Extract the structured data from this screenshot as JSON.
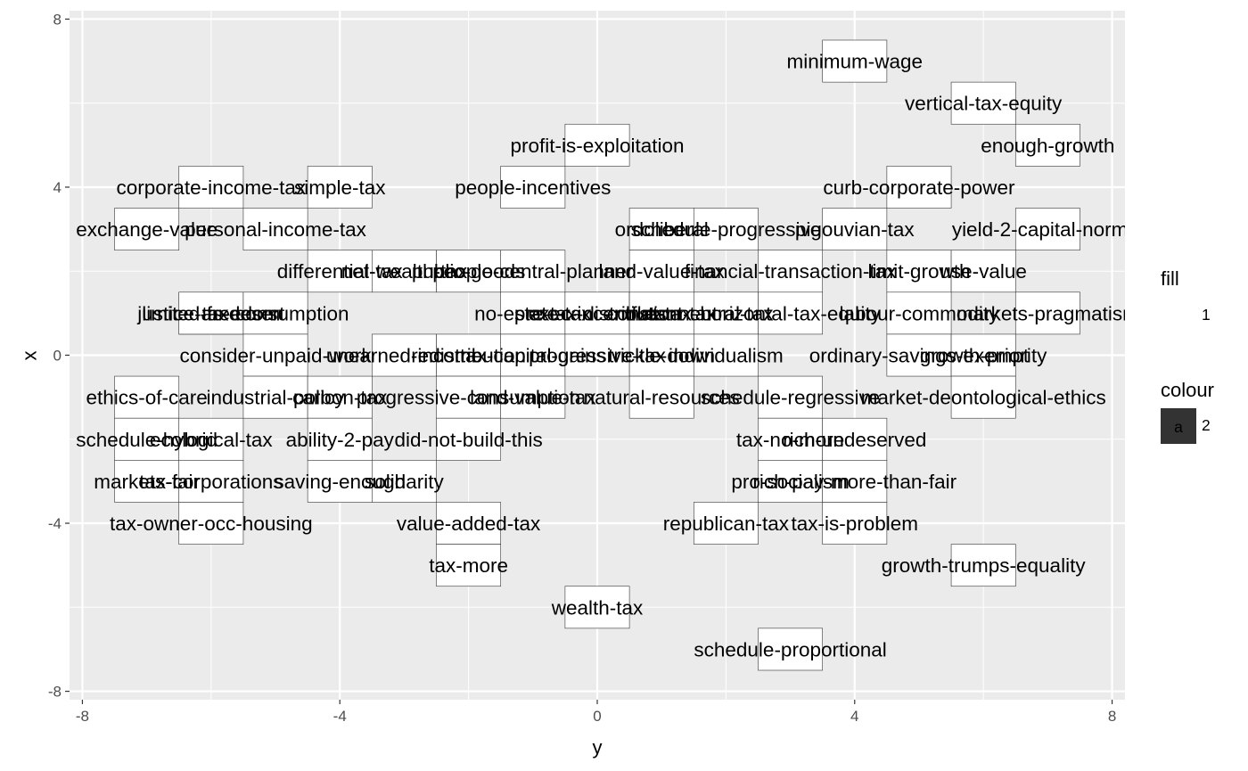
{
  "chart_data": {
    "type": "scatter",
    "xlabel": "y",
    "ylabel": "x",
    "xlim": [
      -8.2,
      8.2
    ],
    "ylim": [
      -8.2,
      8.2
    ],
    "x_ticks": [
      "-8",
      "-4",
      "0",
      "4",
      "8"
    ],
    "y_ticks": [
      "8",
      "4",
      "0",
      "-4",
      "-8"
    ],
    "x_tick_values": [
      -8,
      -4,
      0,
      4,
      8
    ],
    "y_tick_values": [
      8,
      4,
      0,
      -4,
      -8
    ],
    "grid": true,
    "legend": {
      "placement": "right",
      "fill_title": "fill",
      "fill_label": "1",
      "colour_title": "colour",
      "colour_key": "a",
      "colour_label": "2",
      "colour_key_color": "#333333"
    },
    "colors": {
      "panel": "#ebebeb",
      "grid": "#ffffff",
      "tile": "#ffffff",
      "tile_border": "#333333"
    },
    "points": [
      {
        "label": "minimum-wage",
        "x": 4,
        "y": 7
      },
      {
        "label": "vertical-tax-equity",
        "x": 6,
        "y": 6
      },
      {
        "label": "profit-is-exploitation",
        "x": 0,
        "y": 5
      },
      {
        "label": "enough-growth",
        "x": 7,
        "y": 5
      },
      {
        "label": "corporate-income-tax",
        "x": -6,
        "y": 4
      },
      {
        "label": "simple-tax",
        "x": -4,
        "y": 4
      },
      {
        "label": "people-incentives",
        "x": -1,
        "y": 4
      },
      {
        "label": "curb-corporate-power",
        "x": 5,
        "y": 4
      },
      {
        "label": "exchange-value",
        "x": -7,
        "y": 3
      },
      {
        "label": "personal-income-tax",
        "x": -5,
        "y": 3
      },
      {
        "label": "ordoliberal",
        "x": 1,
        "y": 3
      },
      {
        "label": "schedule-progressive",
        "x": 2,
        "y": 3
      },
      {
        "label": "pigouvian-tax",
        "x": 4,
        "y": 3
      },
      {
        "label": "yield-2-capital-normal",
        "x": 7,
        "y": 3
      },
      {
        "label": "differential-tax",
        "x": -4,
        "y": 2
      },
      {
        "label": "net-wealth-tax",
        "x": -3,
        "y": 2
      },
      {
        "label": "public-goods",
        "x": -2,
        "y": 2
      },
      {
        "label": "people-central-planner",
        "x": -1,
        "y": 2
      },
      {
        "label": "land-value-tax",
        "x": 1,
        "y": 2
      },
      {
        "label": "financial-transaction-tax",
        "x": 3,
        "y": 2
      },
      {
        "label": "limit-growth",
        "x": 5,
        "y": 2
      },
      {
        "label": "use-value",
        "x": 6,
        "y": 2
      },
      {
        "label": "justice-as-desert",
        "x": -6,
        "y": 1
      },
      {
        "label": "limited-freedom",
        "x": -6,
        "y": 1
      },
      {
        "label": "tax-consumption",
        "x": -5,
        "y": 1
      },
      {
        "label": "no-estate-tax",
        "x": -1,
        "y": 1
      },
      {
        "label": "exec-incentives",
        "x": 0,
        "y": 1
      },
      {
        "label": "pre-tax-distribution",
        "x": 0,
        "y": 1
      },
      {
        "label": "constant-tax",
        "x": 1,
        "y": 1
      },
      {
        "label": "flat-tax",
        "x": 1,
        "y": 1
      },
      {
        "label": "neutral-tax",
        "x": 2,
        "y": 1
      },
      {
        "label": "horizontal-tax-equity",
        "x": 3,
        "y": 1
      },
      {
        "label": "labour-commodity",
        "x": 5,
        "y": 1
      },
      {
        "label": "markets-pragmatism",
        "x": 7,
        "y": 1
      },
      {
        "label": "consider-unpaid-work",
        "x": -5,
        "y": 0
      },
      {
        "label": "unearned-income",
        "x": -3,
        "y": 0
      },
      {
        "label": "redistribution",
        "x": -2,
        "y": 0
      },
      {
        "label": "tax-capital-gains",
        "x": -1,
        "y": 0
      },
      {
        "label": "progressive-tax",
        "x": 0,
        "y": 0
      },
      {
        "label": "trickle-down",
        "x": 1,
        "y": 0
      },
      {
        "label": "individualism",
        "x": 2,
        "y": 0
      },
      {
        "label": "ordinary-savings-exempt",
        "x": 5,
        "y": 0
      },
      {
        "label": "growth-priority",
        "x": 6,
        "y": 0
      },
      {
        "label": "ethics-of-care",
        "x": -7,
        "y": -1
      },
      {
        "label": "industrial-policy",
        "x": -5,
        "y": -1
      },
      {
        "label": "carbon-tax",
        "x": -4,
        "y": -1
      },
      {
        "label": "progressive-consumption",
        "x": -2,
        "y": -1
      },
      {
        "label": "land-value-tax",
        "x": -1,
        "y": -1
      },
      {
        "label": "natural-resources",
        "x": 1,
        "y": -1
      },
      {
        "label": "schedule-regressive",
        "x": 3,
        "y": -1
      },
      {
        "label": "market-deontological-ethics",
        "x": 6,
        "y": -1
      },
      {
        "label": "schedule-hybrid",
        "x": -7,
        "y": -2
      },
      {
        "label": "ecological-tax",
        "x": -6,
        "y": -2
      },
      {
        "label": "ability-2-pay",
        "x": -4,
        "y": -2
      },
      {
        "label": "did-not-build-this",
        "x": -2,
        "y": -2
      },
      {
        "label": "tax-no-more",
        "x": 3,
        "y": -2
      },
      {
        "label": "rich-undeserved",
        "x": 4,
        "y": -2
      },
      {
        "label": "markets-fair",
        "x": -7,
        "y": -3
      },
      {
        "label": "tax-corporations",
        "x": -6,
        "y": -3
      },
      {
        "label": "saving-enough",
        "x": -4,
        "y": -3
      },
      {
        "label": "solidarity",
        "x": -3,
        "y": -3
      },
      {
        "label": "pro-socialism",
        "x": 3,
        "y": -3
      },
      {
        "label": "rich-pay-more-than-fair",
        "x": 4,
        "y": -3
      },
      {
        "label": "tax-owner-occ-housing",
        "x": -6,
        "y": -4
      },
      {
        "label": "value-added-tax",
        "x": -2,
        "y": -4
      },
      {
        "label": "republican-tax",
        "x": 2,
        "y": -4
      },
      {
        "label": "tax-is-problem",
        "x": 4,
        "y": -4
      },
      {
        "label": "tax-more",
        "x": -2,
        "y": -5
      },
      {
        "label": "growth-trumps-equality",
        "x": 6,
        "y": -5
      },
      {
        "label": "wealth-tax",
        "x": 0,
        "y": -6
      },
      {
        "label": "schedule-proportional",
        "x": 3,
        "y": -7
      }
    ]
  }
}
